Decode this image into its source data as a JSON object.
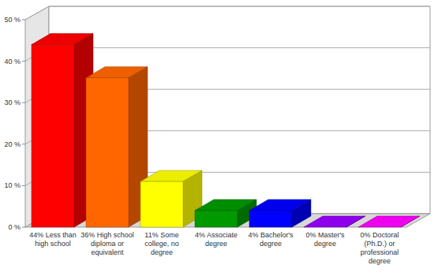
{
  "chart_data": {
    "type": "bar",
    "categories": [
      "44% Less than high school",
      "36% High school diploma or equivalent",
      "11% Some college, no degree",
      "4% Associate degree",
      "4% Bachelor's degree",
      "0% Master's degree",
      "0% Doctoral (Ph.D.) or professional degree"
    ],
    "values": [
      44,
      36,
      11,
      4,
      4,
      0,
      0
    ],
    "colors": [
      "#ff0000",
      "#ff6600",
      "#ffff00",
      "#009900",
      "#0000ff",
      "#9900ff",
      "#ff00ff"
    ],
    "ylim": [
      0,
      50
    ],
    "yticks": [
      {
        "value": 0,
        "label": "0 %"
      },
      {
        "value": 10,
        "label": "10 %"
      },
      {
        "value": 20,
        "label": "20 %"
      },
      {
        "value": 30,
        "label": "30 %"
      },
      {
        "value": 40,
        "label": "40 %"
      },
      {
        "value": 50,
        "label": "50 %"
      }
    ],
    "grid": true
  }
}
